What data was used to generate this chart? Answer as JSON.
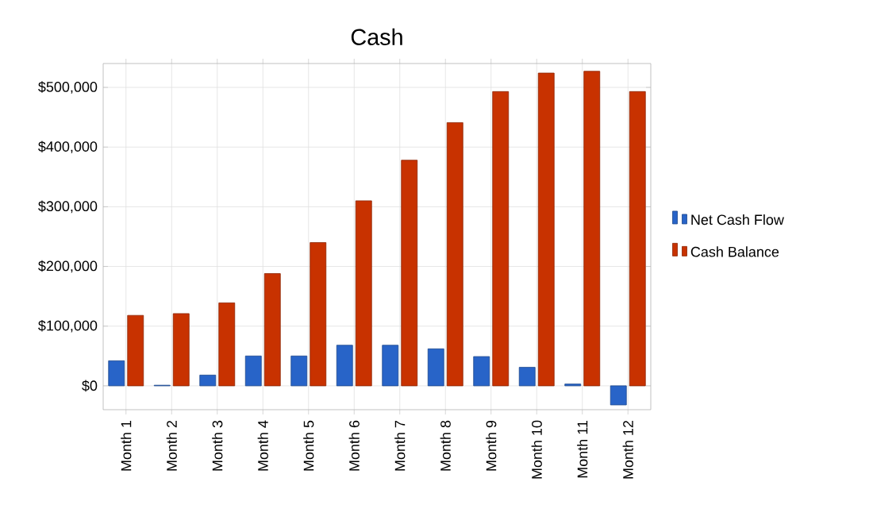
{
  "chart_data": {
    "type": "bar",
    "title": "Cash",
    "categories": [
      "Month 1",
      "Month 2",
      "Month 3",
      "Month 4",
      "Month 5",
      "Month 6",
      "Month 7",
      "Month 8",
      "Month 9",
      "Month 10",
      "Month 11",
      "Month 12"
    ],
    "series": [
      {
        "name": "Net Cash Flow",
        "color": "#2864c8",
        "values": [
          42000,
          1000,
          18000,
          50000,
          50000,
          68000,
          68000,
          62000,
          49000,
          31000,
          3000,
          -32000
        ]
      },
      {
        "name": "Cash Balance",
        "color": "#c83200",
        "values": [
          118000,
          121000,
          139000,
          188000,
          240000,
          310000,
          378000,
          441000,
          493000,
          524000,
          527000,
          493000
        ]
      }
    ],
    "ylim": [
      -40000,
      540000
    ],
    "yticks": [
      {
        "value": 0,
        "label": "$0"
      },
      {
        "value": 100000,
        "label": "$100,000"
      },
      {
        "value": 200000,
        "label": "$200,000"
      },
      {
        "value": 300000,
        "label": "$300,000"
      },
      {
        "value": 400000,
        "label": "$400,000"
      },
      {
        "value": 500000,
        "label": "$500,000"
      }
    ],
    "grid": true,
    "legend": "right"
  }
}
